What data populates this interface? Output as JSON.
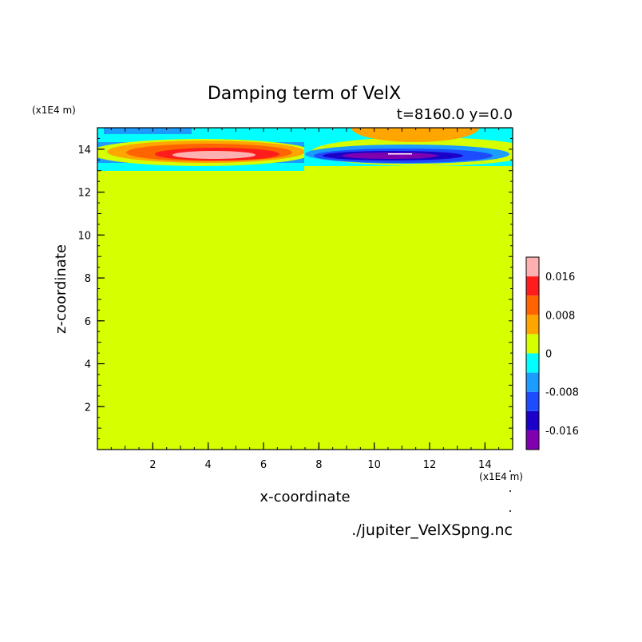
{
  "chart_data": {
    "type": "heatmap",
    "title": "Damping term of VelX",
    "subtitle": "t=8160.0 y=0.0",
    "xlabel": "x-coordinate",
    "ylabel": "z-coordinate",
    "x_unit": "(x1E4 m)",
    "y_unit": "(x1E4 m)",
    "xlim": [
      0,
      15
    ],
    "ylim": [
      0,
      15
    ],
    "x_ticks": [
      2,
      4,
      6,
      8,
      10,
      12,
      14
    ],
    "y_ticks": [
      2,
      4,
      6,
      8,
      10,
      12,
      14
    ],
    "background_level": 0,
    "colorbar": {
      "labels": [
        {
          "text": "0.016",
          "value": 0.016
        },
        {
          "text": "0.008",
          "value": 0.008
        },
        {
          "text": "0",
          "value": 0
        },
        {
          "text": "-0.008",
          "value": -0.008
        },
        {
          "text": "-0.016",
          "value": -0.016
        }
      ],
      "levels": [
        {
          "lo": -0.02,
          "hi": -0.016,
          "color": "#8000b0"
        },
        {
          "lo": -0.016,
          "hi": -0.012,
          "color": "#1c00c8"
        },
        {
          "lo": -0.012,
          "hi": -0.008,
          "color": "#1d4cff"
        },
        {
          "lo": -0.008,
          "hi": -0.004,
          "color": "#1b9cff"
        },
        {
          "lo": -0.004,
          "hi": 0,
          "color": "#00ffff"
        },
        {
          "lo": 0,
          "hi": 0.004,
          "color": "#d6ff00"
        },
        {
          "lo": 0.004,
          "hi": 0.008,
          "color": "#ffa500"
        },
        {
          "lo": 0.008,
          "hi": 0.012,
          "color": "#ff6400"
        },
        {
          "lo": 0.012,
          "hi": 0.016,
          "color": "#ff1c1c"
        },
        {
          "lo": 0.016,
          "hi": 0.02,
          "color": "#ffb0b0"
        }
      ]
    },
    "features": [
      {
        "sign": "positive",
        "x_range": [
          0,
          7.5
        ],
        "z_range": [
          13.2,
          14.8
        ],
        "peak_x": 4.5,
        "peak_z": 13.7,
        "peak_value": 0.018
      },
      {
        "sign": "negative",
        "x_range": [
          7.5,
          15
        ],
        "z_range": [
          13.2,
          14.8
        ],
        "peak_x": 10.8,
        "peak_z": 13.6,
        "peak_value": -0.018
      }
    ],
    "source": "./jupiter_VelXSpng.nc"
  }
}
